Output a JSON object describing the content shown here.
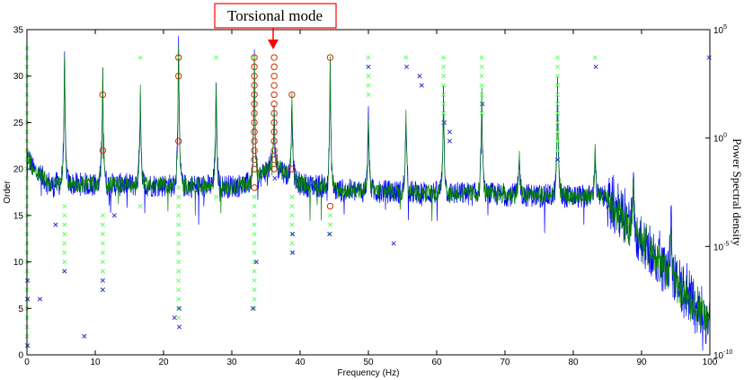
{
  "chart_data": {
    "type": "line",
    "xlabel": "Frequency (Hz)",
    "ylabel": "Order",
    "y2label": "Power Spectral density",
    "xlim": [
      0,
      100
    ],
    "ylim": [
      0,
      35
    ],
    "y2lim_log10": [
      -10,
      5
    ],
    "y2scale": "log",
    "xticks": [
      "0",
      "10",
      "20",
      "30",
      "40",
      "50",
      "60",
      "70",
      "80",
      "90",
      "100"
    ],
    "yticks": [
      "0",
      "5",
      "10",
      "15",
      "20",
      "25",
      "30",
      "35"
    ],
    "y2ticks": [
      {
        "base": "10",
        "exp": "5",
        "log": 5
      },
      {
        "base": "10",
        "exp": "0",
        "log": 0
      },
      {
        "base": "10",
        "exp": "-5",
        "log": -5
      },
      {
        "base": "10",
        "exp": "-10",
        "log": -10
      }
    ],
    "annotation": {
      "text": "Torsional mode",
      "x": 36.2
    },
    "colors": {
      "psd_blue": "#0000ff",
      "psd_green": "#008000",
      "green_x": "#66ff66",
      "blue_x": "#3333cc",
      "circle": "#cc3300",
      "annot_red": "#ff0000"
    },
    "psd_peaks": [
      {
        "x": 5.5,
        "log": 3.5
      },
      {
        "x": 11.1,
        "log": 3.5
      },
      {
        "x": 16.6,
        "log": 2.3
      },
      {
        "x": 22.2,
        "log": 4.2
      },
      {
        "x": 27.7,
        "log": 2.5
      },
      {
        "x": 33.3,
        "log": 3.6
      },
      {
        "x": 36.2,
        "log": 1.2
      },
      {
        "x": 38.8,
        "log": 2.0
      },
      {
        "x": 44.4,
        "log": 3.5
      },
      {
        "x": 50.0,
        "log": 1.2
      },
      {
        "x": 55.5,
        "log": 1.2
      },
      {
        "x": 61.0,
        "log": 2.2
      },
      {
        "x": 66.6,
        "log": 2.1
      },
      {
        "x": 72.1,
        "log": -0.8
      },
      {
        "x": 77.7,
        "log": 2.3
      },
      {
        "x": 83.2,
        "log": -0.5
      },
      {
        "x": 88.8,
        "log": -2.0
      },
      {
        "x": 94.3,
        "log": -3.6
      }
    ],
    "green_x_markers": [
      {
        "x": 0.0,
        "y": [
          1,
          2,
          3,
          4,
          5,
          6,
          7,
          8,
          9,
          10,
          11,
          12,
          13,
          14,
          15,
          16,
          17,
          18,
          19,
          20,
          21,
          22,
          23,
          24,
          25,
          26,
          27,
          28,
          29,
          30,
          31,
          32,
          33
        ]
      },
      {
        "x": 5.5,
        "y": [
          9,
          10,
          11,
          12,
          13,
          14,
          15,
          16
        ]
      },
      {
        "x": 11.1,
        "y": [
          7,
          8,
          9,
          10,
          11,
          12,
          13,
          14,
          15
        ]
      },
      {
        "x": 16.6,
        "y": [
          16,
          32
        ]
      },
      {
        "x": 22.2,
        "y": [
          4,
          5,
          6,
          7,
          8,
          9,
          10,
          11,
          12,
          13,
          14,
          15,
          16,
          17,
          18,
          32
        ]
      },
      {
        "x": 27.7,
        "y": [
          17,
          32
        ]
      },
      {
        "x": 33.3,
        "y": [
          5,
          6,
          7,
          8,
          9,
          10,
          11,
          12,
          13,
          14,
          15,
          16,
          17,
          32
        ]
      },
      {
        "x": 38.8,
        "y": [
          11,
          12,
          13,
          14,
          15,
          16,
          17
        ]
      },
      {
        "x": 44.4,
        "y": [
          13,
          14,
          15
        ]
      },
      {
        "x": 50.0,
        "y": [
          28,
          29,
          30,
          31,
          32
        ]
      },
      {
        "x": 55.5,
        "y": [
          32
        ]
      },
      {
        "x": 61.0,
        "y": [
          25,
          26,
          27,
          28,
          29,
          30,
          31,
          32
        ]
      },
      {
        "x": 66.6,
        "y": [
          26,
          27,
          28,
          29,
          30,
          31,
          32
        ]
      },
      {
        "x": 77.7,
        "y": [
          21,
          22,
          23,
          24,
          25,
          26,
          27,
          28,
          29,
          30,
          31,
          32
        ]
      },
      {
        "x": 83.2,
        "y": [
          32
        ]
      }
    ],
    "blue_x_markers": [
      {
        "x": 0.1,
        "y": 8
      },
      {
        "x": 0.1,
        "y": 6
      },
      {
        "x": 0.1,
        "y": 1
      },
      {
        "x": 1.9,
        "y": 6
      },
      {
        "x": 4.2,
        "y": 14
      },
      {
        "x": 5.5,
        "y": 9
      },
      {
        "x": 8.4,
        "y": 2
      },
      {
        "x": 11.1,
        "y": 8
      },
      {
        "x": 11.1,
        "y": 7
      },
      {
        "x": 12.8,
        "y": 15
      },
      {
        "x": 21.6,
        "y": 4
      },
      {
        "x": 22.3,
        "y": 5
      },
      {
        "x": 22.3,
        "y": 3
      },
      {
        "x": 33.1,
        "y": 5
      },
      {
        "x": 33.6,
        "y": 10
      },
      {
        "x": 36.3,
        "y": 19
      },
      {
        "x": 38.9,
        "y": 13
      },
      {
        "x": 38.9,
        "y": 11
      },
      {
        "x": 44.3,
        "y": 13
      },
      {
        "x": 50.0,
        "y": 31
      },
      {
        "x": 53.7,
        "y": 12
      },
      {
        "x": 55.6,
        "y": 31
      },
      {
        "x": 57.5,
        "y": 30
      },
      {
        "x": 57.8,
        "y": 29
      },
      {
        "x": 61.1,
        "y": 25
      },
      {
        "x": 61.9,
        "y": 24
      },
      {
        "x": 61.9,
        "y": 23
      },
      {
        "x": 66.7,
        "y": 27
      },
      {
        "x": 77.7,
        "y": 21
      },
      {
        "x": 83.3,
        "y": 31
      },
      {
        "x": 99.9,
        "y": 32
      }
    ],
    "circle_markers": [
      {
        "x": 11.1,
        "y": 28
      },
      {
        "x": 11.1,
        "y": 22
      },
      {
        "x": 22.2,
        "y": 32
      },
      {
        "x": 22.2,
        "y": 30
      },
      {
        "x": 22.2,
        "y": 23
      },
      {
        "x": 33.3,
        "y": 32
      },
      {
        "x": 33.3,
        "y": 31
      },
      {
        "x": 33.3,
        "y": 30
      },
      {
        "x": 33.3,
        "y": 29
      },
      {
        "x": 33.3,
        "y": 28
      },
      {
        "x": 33.3,
        "y": 27
      },
      {
        "x": 33.3,
        "y": 26
      },
      {
        "x": 33.3,
        "y": 25
      },
      {
        "x": 33.3,
        "y": 24
      },
      {
        "x": 33.3,
        "y": 23
      },
      {
        "x": 33.3,
        "y": 22
      },
      {
        "x": 33.3,
        "y": 21
      },
      {
        "x": 33.3,
        "y": 20
      },
      {
        "x": 33.3,
        "y": 18
      },
      {
        "x": 36.2,
        "y": 32
      },
      {
        "x": 36.2,
        "y": 31
      },
      {
        "x": 36.2,
        "y": 30
      },
      {
        "x": 36.2,
        "y": 29
      },
      {
        "x": 36.2,
        "y": 28
      },
      {
        "x": 36.2,
        "y": 27
      },
      {
        "x": 36.2,
        "y": 26
      },
      {
        "x": 36.2,
        "y": 25
      },
      {
        "x": 36.2,
        "y": 24
      },
      {
        "x": 36.2,
        "y": 23
      },
      {
        "x": 36.2,
        "y": 22
      },
      {
        "x": 36.2,
        "y": 21
      },
      {
        "x": 36.2,
        "y": 20
      },
      {
        "x": 38.8,
        "y": 28
      },
      {
        "x": 38.8,
        "y": 20
      },
      {
        "x": 44.4,
        "y": 32
      },
      {
        "x": 44.4,
        "y": 16
      }
    ]
  }
}
